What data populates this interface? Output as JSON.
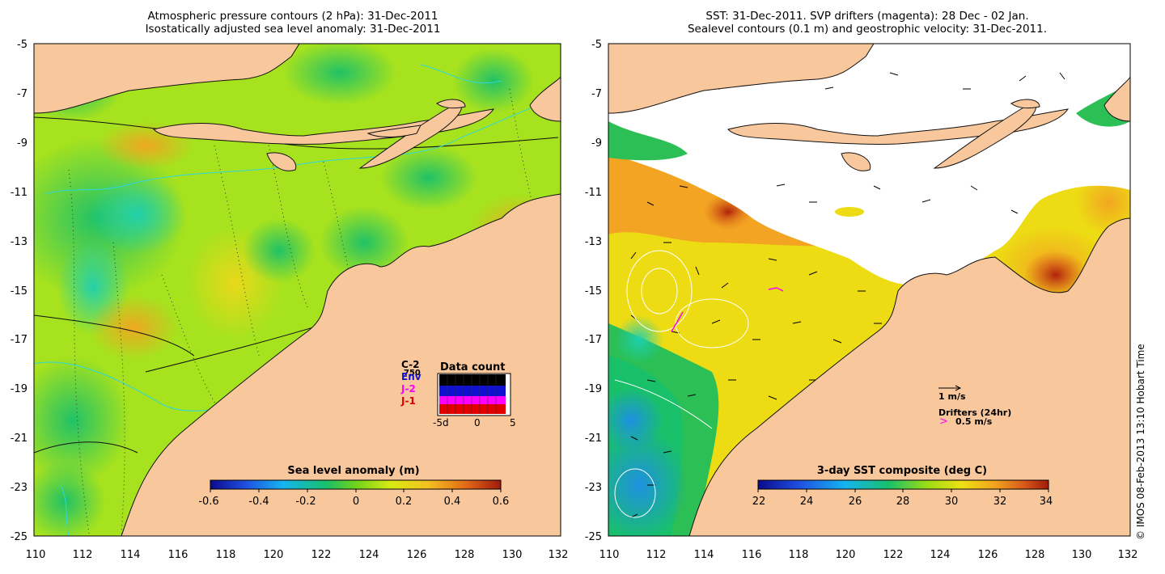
{
  "left_panel": {
    "title_line1": "Atmospheric pressure contours (2 hPa): 31-Dec-2011",
    "title_line2": "Isostatically adjusted sea level anomaly: 31-Dec-2011",
    "colorbar_label": "Sea level anomaly (m)",
    "colorbar_ticks": [
      "-0.6",
      "-0.4",
      "-0.2",
      "0",
      "0.2",
      "0.4",
      "0.6"
    ],
    "inset": {
      "title": "Data count",
      "series": [
        {
          "name": "C-2",
          "color": "#000000"
        },
        {
          "name": "Env",
          "color": "#1010d0"
        },
        {
          "name": "J-2",
          "color": "#ff00ff"
        },
        {
          "name": "J-1",
          "color": "#e00000"
        }
      ],
      "count_label": "750",
      "xticks": [
        "-5d",
        "0",
        "5"
      ]
    }
  },
  "right_panel": {
    "title_line1": "SST: 31-Dec-2011. SVP drifters (magenta): 28 Dec - 02 Jan.",
    "title_line2": "Sealevel contours (0.1 m) and geostrophic velocity: 31-Dec-2011.",
    "colorbar_label": "3-day SST composite (deg C)",
    "colorbar_ticks": [
      "22",
      "24",
      "26",
      "28",
      "30",
      "32",
      "34"
    ],
    "velocity_scale_label": "1 m/s",
    "drifters_label": "Drifters (24hr)",
    "drifters_scale_symbol": ">",
    "drifters_scale_label": "0.5 m/s"
  },
  "axes": {
    "y_ticks": [
      "-5",
      "-7",
      "-9",
      "-11",
      "-13",
      "-15",
      "-17",
      "-19",
      "-21",
      "-23",
      "-25"
    ],
    "x_ticks": [
      "110",
      "112",
      "114",
      "116",
      "118",
      "120",
      "122",
      "124",
      "126",
      "128",
      "130",
      "132"
    ]
  },
  "credit": "© IMOS 08-Feb-2013 13:10 Hobart Time",
  "colors": {
    "land": "#f9c79c",
    "ocean_left_base": "#a6e21e",
    "ocean_right_base": "#eddb14",
    "cloud_mask": "#ffffff"
  }
}
